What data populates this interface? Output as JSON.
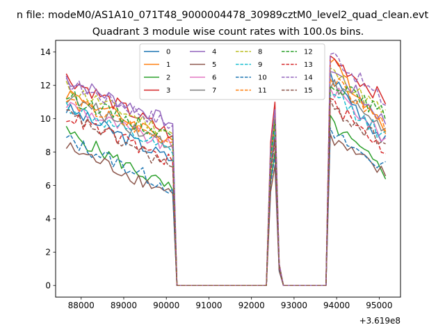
{
  "chart_data": {
    "type": "line",
    "suptitle": "n file: modeM0/AS1A10_071T48_9000004478_30989cztM0_level2_quad_clean.evt",
    "title": "Quadrant 3 module wise count rates with 100.0s bins.",
    "xlabel": "",
    "ylabel": "",
    "x_offset_label": "+3.619e8",
    "xlim": [
      87400,
      95500
    ],
    "ylim": [
      -0.7,
      14.7
    ],
    "x_ticks": [
      88000,
      89000,
      90000,
      91000,
      92000,
      93000,
      94000,
      95000
    ],
    "x_tick_labels": [
      "88000",
      "89000",
      "90000",
      "91000",
      "92000",
      "93000",
      "94000",
      "95000"
    ],
    "y_ticks": [
      0,
      2,
      4,
      6,
      8,
      10,
      12,
      14
    ],
    "y_tick_labels": [
      "0",
      "2",
      "4",
      "6",
      "8",
      "10",
      "12",
      "14"
    ],
    "grid": false,
    "legend": {
      "position": "top-center",
      "columns": 4
    },
    "time_structure": {
      "bin_width": 100,
      "segments": [
        {
          "kind": "active",
          "start": 87650,
          "end": 90150
        },
        {
          "kind": "zero",
          "start": 90250,
          "end": 92350
        },
        {
          "kind": "spike",
          "start": 92450,
          "end": 92650
        },
        {
          "kind": "zero",
          "start": 92750,
          "end": 93750
        },
        {
          "kind": "active",
          "start": 93850,
          "end": 95150
        }
      ]
    },
    "series": [
      {
        "name": "0",
        "color": "#1f77b4",
        "dash": "solid",
        "start_level": 10.6,
        "pre_gap_level": 7.5,
        "spike_peak": 9.0,
        "resume_level": 12.6,
        "end_level": 8.6
      },
      {
        "name": "1",
        "color": "#ff7f0e",
        "dash": "solid",
        "start_level": 11.6,
        "pre_gap_level": 8.7,
        "spike_peak": 10.3,
        "resume_level": 13.5,
        "end_level": 9.5
      },
      {
        "name": "2",
        "color": "#2ca02c",
        "dash": "solid",
        "start_level": 9.2,
        "pre_gap_level": 5.7,
        "spike_peak": 8.0,
        "resume_level": 9.8,
        "end_level": 6.7
      },
      {
        "name": "3",
        "color": "#d62728",
        "dash": "solid",
        "start_level": 12.5,
        "pre_gap_level": 9.0,
        "spike_peak": 11.0,
        "resume_level": 13.7,
        "end_level": 11.1
      },
      {
        "name": "4",
        "color": "#9467bd",
        "dash": "solid",
        "start_level": 12.4,
        "pre_gap_level": 9.7,
        "spike_peak": 10.4,
        "resume_level": 13.1,
        "end_level": 9.8
      },
      {
        "name": "5",
        "color": "#8c564b",
        "dash": "solid",
        "start_level": 8.3,
        "pre_gap_level": 5.5,
        "spike_peak": 7.2,
        "resume_level": 8.8,
        "end_level": 6.6
      },
      {
        "name": "6",
        "color": "#e377c2",
        "dash": "solid",
        "start_level": 10.9,
        "pre_gap_level": 8.2,
        "spike_peak": 9.4,
        "resume_level": 11.9,
        "end_level": 8.8
      },
      {
        "name": "7",
        "color": "#7f7f7f",
        "dash": "solid",
        "start_level": 11.3,
        "pre_gap_level": 8.4,
        "spike_peak": 9.6,
        "resume_level": 12.2,
        "end_level": 9.3
      },
      {
        "name": "8",
        "color": "#bcbd22",
        "dash": "dashed",
        "start_level": 11.9,
        "pre_gap_level": 9.1,
        "spike_peak": 10.1,
        "resume_level": 12.9,
        "end_level": 10.3
      },
      {
        "name": "9",
        "color": "#17becf",
        "dash": "dashed",
        "start_level": 10.8,
        "pre_gap_level": 7.9,
        "spike_peak": 9.3,
        "resume_level": 11.6,
        "end_level": 8.9
      },
      {
        "name": "10",
        "color": "#1f77b4",
        "dash": "dashed",
        "start_level": 8.8,
        "pre_gap_level": 5.8,
        "spike_peak": 7.8,
        "resume_level": 9.1,
        "end_level": 7.0
      },
      {
        "name": "11",
        "color": "#ff7f0e",
        "dash": "dashed",
        "start_level": 11.1,
        "pre_gap_level": 8.6,
        "spike_peak": 9.8,
        "resume_level": 12.4,
        "end_level": 9.6
      },
      {
        "name": "12",
        "color": "#2ca02c",
        "dash": "dashed",
        "start_level": 11.4,
        "pre_gap_level": 8.9,
        "spike_peak": 9.9,
        "resume_level": 12.3,
        "end_level": 10.2
      },
      {
        "name": "13",
        "color": "#d62728",
        "dash": "dashed",
        "start_level": 10.2,
        "pre_gap_level": 7.4,
        "spike_peak": 8.8,
        "resume_level": 11.0,
        "end_level": 8.1
      },
      {
        "name": "14",
        "color": "#9467bd",
        "dash": "dashed",
        "start_level": 12.2,
        "pre_gap_level": 9.6,
        "spike_peak": 10.6,
        "resume_level": 14.0,
        "end_level": 10.9
      },
      {
        "name": "15",
        "color": "#8c564b",
        "dash": "dashed",
        "start_level": 10.3,
        "pre_gap_level": 7.1,
        "spike_peak": 8.6,
        "resume_level": 10.7,
        "end_level": 8.5
      }
    ]
  }
}
